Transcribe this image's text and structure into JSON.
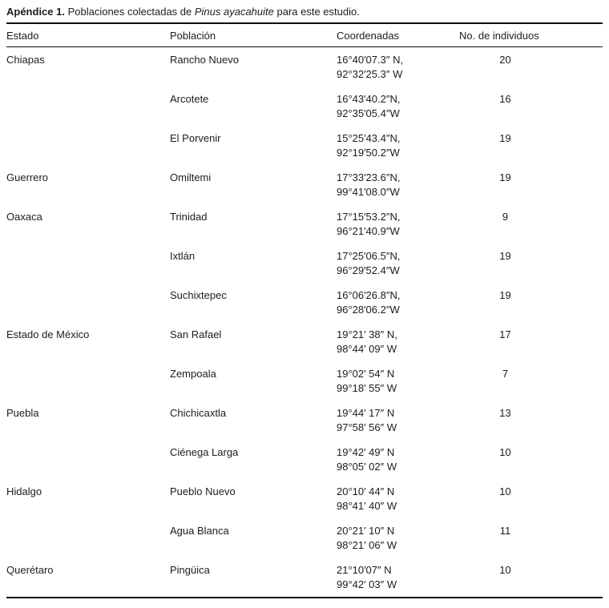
{
  "caption": {
    "label": "Apéndice 1.",
    "text_before_species": " Poblaciones colectadas de ",
    "species": "Pinus ayacahuite",
    "text_after_species": " para este estudio."
  },
  "table": {
    "headers": [
      "Estado",
      "Población",
      "Coordenadas",
      "No. de individuos"
    ],
    "rows": [
      {
        "estado": "Chiapas",
        "poblacion": "Rancho Nuevo",
        "coord_lat": "16°40′07.3″ N,",
        "coord_lon": "92°32′25.3″ W",
        "individuos": "20"
      },
      {
        "estado": "",
        "poblacion": "Arcotete",
        "coord_lat": "16°43′40.2″N,",
        "coord_lon": "92°35′05.4″W",
        "individuos": "16"
      },
      {
        "estado": "",
        "poblacion": "El Porvenir",
        "coord_lat": "15°25′43.4″N,",
        "coord_lon": "92°19′50.2″W",
        "individuos": "19"
      },
      {
        "estado": "Guerrero",
        "poblacion": "Omiltemi",
        "coord_lat": "17°33′23.6″N,",
        "coord_lon": "99°41′08.0″W",
        "individuos": "19"
      },
      {
        "estado": "Oaxaca",
        "poblacion": "Trinidad",
        "coord_lat": "17°15′53.2″N,",
        "coord_lon": "96°21′40.9″W",
        "individuos": "9"
      },
      {
        "estado": "",
        "poblacion": "Ixtlán",
        "coord_lat": "17°25′06.5″N,",
        "coord_lon": "96°29′52.4″W",
        "individuos": "19"
      },
      {
        "estado": "",
        "poblacion": "Suchixtepec",
        "coord_lat": "16°06′26.8″N,",
        "coord_lon": "96°28′06.2″W",
        "individuos": "19"
      },
      {
        "estado": "Estado de México",
        "poblacion": "San Rafael",
        "coord_lat": "19°21′ 38″ N,",
        "coord_lon": "98°44′ 09″ W",
        "individuos": "17"
      },
      {
        "estado": "",
        "poblacion": "Zempoala",
        "coord_lat": "19°02′ 54″ N",
        "coord_lon": "99°18′ 55″ W",
        "individuos": "7"
      },
      {
        "estado": "Puebla",
        "poblacion": "Chichicaxtla",
        "coord_lat": "19°44′ 17″ N",
        "coord_lon": "97°58′ 56″ W",
        "individuos": "13"
      },
      {
        "estado": "",
        "poblacion": "Ciénega Larga",
        "coord_lat": "19°42′ 49″ N",
        "coord_lon": "98°05′ 02″ W",
        "individuos": "10"
      },
      {
        "estado": "Hidalgo",
        "poblacion": "Pueblo Nuevo",
        "coord_lat": "20°10′ 44″ N",
        "coord_lon": "98°41′ 40″ W",
        "individuos": "10"
      },
      {
        "estado": "",
        "poblacion": "Agua Blanca",
        "coord_lat": "20°21′ 10″ N",
        "coord_lon": "98°21′ 06″ W",
        "individuos": "11"
      },
      {
        "estado": "Querétaro",
        "poblacion": "Pingüica",
        "coord_lat": "21°10′07″ N",
        "coord_lon": "99°42′ 03″ W",
        "individuos": "10"
      }
    ]
  }
}
